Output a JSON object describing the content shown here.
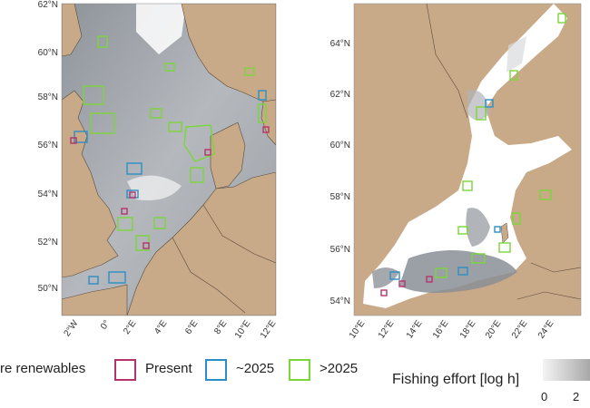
{
  "left_map": {
    "lat_labels": [
      "62°N",
      "60°N",
      "58°N",
      "56°N",
      "54°N",
      "52°N",
      "50°N"
    ],
    "lon_labels": [
      "2°W",
      "0°",
      "2°E",
      "4°E",
      "6°E",
      "8°E",
      "10°E",
      "12°E"
    ]
  },
  "right_map": {
    "lat_labels": [
      "64°N",
      "62°N",
      "60°N",
      "58°N",
      "56°N",
      "54°N"
    ],
    "lon_labels": [
      "10°E",
      "12°E",
      "14°E",
      "16°E",
      "18°E",
      "20°E",
      "22°E",
      "24°E"
    ]
  },
  "legend": {
    "title": "re renewables",
    "items": [
      {
        "label": "Present",
        "color": "#b5336b"
      },
      {
        "label": "~2025",
        "color": "#2b8fc6"
      },
      {
        "label": ">2025",
        "color": "#7bd63a"
      }
    ]
  },
  "effort_legend": {
    "title": "Fishing effort [log h]",
    "tick_min": "0",
    "tick_max": "2"
  },
  "colors": {
    "land": "#c8aa88",
    "sea_fished": "#9a9fa6",
    "border": "#5a4a3a",
    "present": "#b5336b",
    "near_term": "#2b8fc6",
    "future": "#7bd63a"
  }
}
